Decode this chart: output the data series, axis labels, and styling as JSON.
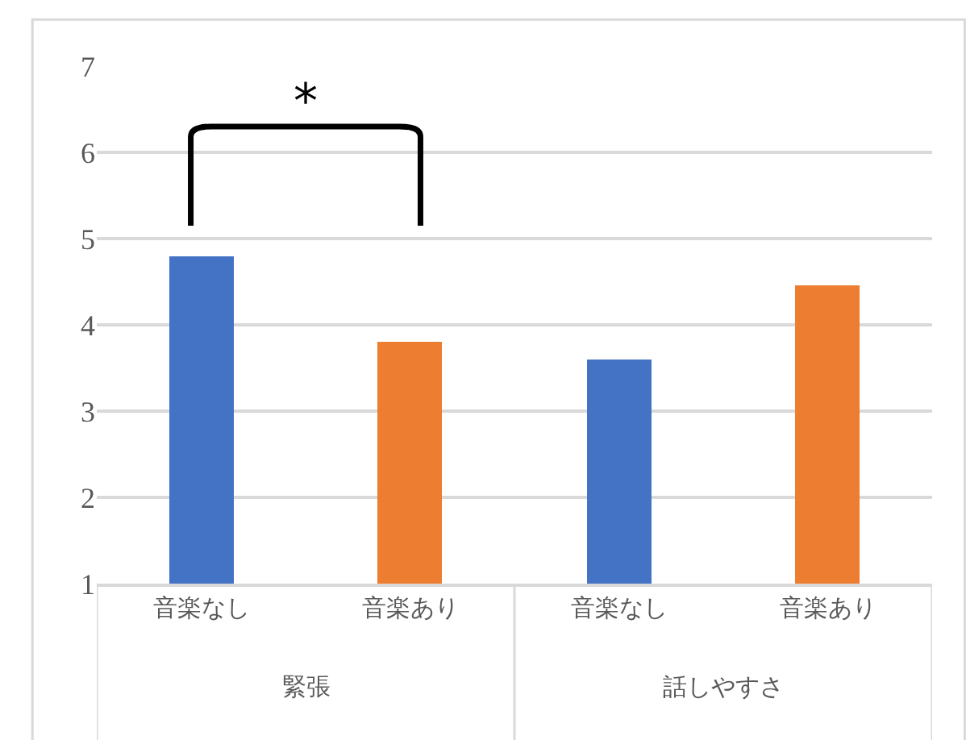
{
  "chart_data": {
    "type": "bar",
    "categories": [
      "音楽なし",
      "音楽あり",
      "音楽なし",
      "音楽あり"
    ],
    "series": [
      {
        "values": [
          4.8,
          3.8,
          3.6,
          4.45
        ],
        "colors": [
          "#4472c4",
          "#ed7d31",
          "#4472c4",
          "#ed7d31"
        ]
      }
    ],
    "ylim": [
      1,
      7
    ],
    "yticks": [
      1,
      2,
      3,
      4,
      5,
      6,
      7
    ],
    "grid": "y",
    "annotations": [
      "*",
      "緊張",
      "話しやすさ"
    ]
  }
}
